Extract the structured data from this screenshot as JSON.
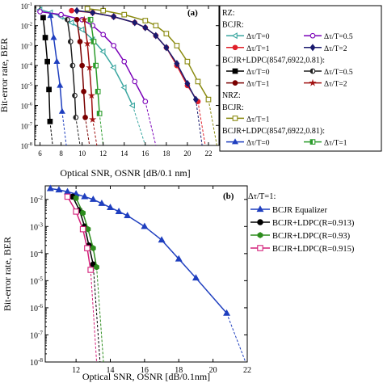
{
  "chart_data": [
    {
      "type": "line",
      "panel": "(a)",
      "xlabel": "Optical SNR, OSNR [dB/0.1 nm]",
      "ylabel": "Bit-error rate, BER",
      "xlim": [
        5.5,
        23
      ],
      "ylog": true,
      "ylim_exp": [
        -8,
        -1
      ],
      "xticks": [
        "6",
        "8",
        "10",
        "12",
        "14",
        "16",
        "18",
        "20",
        "22"
      ],
      "yticks": [
        "10-1",
        "10-2",
        "10-3",
        "10-4",
        "10-5",
        "10-6",
        "10-7",
        "10-8"
      ],
      "legend_placement": "right",
      "legend": [
        {
          "kind": "header",
          "text": "RZ:"
        },
        {
          "kind": "header",
          "text": "BCJR:"
        },
        {
          "kind": "pair",
          "left": "Δτ/T=0",
          "right": "Δτ/T=0.5"
        },
        {
          "kind": "pair",
          "left": "Δτ/T=1",
          "right": "Δτ/T=2"
        },
        {
          "kind": "header",
          "text": "BCJR+LDPC(8547,6922,0.81):"
        },
        {
          "kind": "pair",
          "left": "Δτ/T=0",
          "right": "Δτ/T=0.5"
        },
        {
          "kind": "pair",
          "left": "Δτ/T=1",
          "right": "Δτ/T=2"
        },
        {
          "kind": "header",
          "text": "NRZ:"
        },
        {
          "kind": "header",
          "text": "BCJR:"
        },
        {
          "kind": "single",
          "text": "Δτ/T=1"
        },
        {
          "kind": "header",
          "text": "BCJR+LDPC(8547,6922,0.81):"
        },
        {
          "kind": "pair",
          "left": "Δτ/T=0",
          "right": "Δτ/T=1"
        }
      ],
      "series": [
        {
          "color": "#3aa6a0",
          "marker": "tri-left",
          "fill": "open",
          "x": [
            6.0,
            7.0,
            8.0,
            9.0,
            10.0,
            11.0,
            12.0,
            13.0,
            14.0,
            14.8
          ],
          "y_exp": [
            -1.2,
            -1.35,
            -1.55,
            -1.85,
            -2.2,
            -2.7,
            -3.3,
            -4.1,
            -5.1,
            -6.0
          ],
          "extension": {
            "x": [
              14.8,
              16.0
            ],
            "y_exp": [
              -6.0,
              -8.0
            ]
          }
        },
        {
          "color": "#7a00b8",
          "marker": "circle",
          "fill": "open",
          "x": [
            6.0,
            8.0,
            10.0,
            11.0,
            12.0,
            13.0,
            14.0,
            15.0,
            16.0
          ],
          "y_exp": [
            -1.3,
            -1.45,
            -1.7,
            -2.0,
            -2.45,
            -3.0,
            -3.8,
            -4.8,
            -5.8
          ],
          "extension": {
            "x": [
              16.0,
              17.0
            ],
            "y_exp": [
              -5.8,
              -8.0
            ]
          }
        },
        {
          "color": "#e0202a",
          "marker": "circle",
          "fill": "filled",
          "x": [
            9.0,
            11.0,
            13.0,
            15.0,
            16.0,
            17.0,
            18.0,
            19.0,
            20.0,
            21.0
          ],
          "y_exp": [
            -1.25,
            -1.35,
            -1.55,
            -1.85,
            -2.1,
            -2.5,
            -3.1,
            -4.0,
            -5.0,
            -5.8
          ],
          "extension": {
            "x": [
              21.0,
              21.7
            ],
            "y_exp": [
              -5.8,
              -8.0
            ]
          }
        },
        {
          "color": "#1a1a6e",
          "marker": "diamond",
          "fill": "filled",
          "x": [
            9.5,
            11.0,
            13.0,
            15.0,
            16.0,
            17.0,
            18.0,
            19.0,
            20.0,
            20.8
          ],
          "y_exp": [
            -1.25,
            -1.35,
            -1.55,
            -1.85,
            -2.1,
            -2.5,
            -3.1,
            -3.9,
            -4.9,
            -5.7
          ],
          "extension": {
            "x": [
              20.8,
              21.4
            ],
            "y_exp": [
              -5.7,
              -8.0
            ]
          }
        },
        {
          "color": "#000000",
          "marker": "square",
          "fill": "filled",
          "x": [
            6.3,
            6.5,
            6.7,
            6.85,
            6.95
          ],
          "y_exp": [
            -1.6,
            -2.6,
            -3.8,
            -5.2,
            -6.8
          ],
          "extension": {
            "x": [
              6.95,
              7.2
            ],
            "y_exp": [
              -6.8,
              -8.0
            ]
          }
        },
        {
          "color": "#222222",
          "marker": "circle-half",
          "fill": "half",
          "x": [
            8.6,
            8.9,
            9.1,
            9.3,
            9.4
          ],
          "y_exp": [
            -1.7,
            -2.8,
            -4.0,
            -5.5,
            -6.6
          ],
          "extension": {
            "x": [
              9.4,
              9.8
            ],
            "y_exp": [
              -6.6,
              -8.0
            ]
          }
        },
        {
          "color": "#7a0000",
          "marker": "circle",
          "fill": "filled",
          "x": [
            9.5,
            9.8,
            10.0,
            10.15,
            10.3
          ],
          "y_exp": [
            -1.7,
            -2.8,
            -4.0,
            -5.3,
            -6.6
          ],
          "extension": {
            "x": [
              10.3,
              10.7
            ],
            "y_exp": [
              -6.6,
              -8.0
            ]
          }
        },
        {
          "color": "#a01010",
          "marker": "star",
          "fill": "filled",
          "x": [
            10.2,
            10.5,
            10.7,
            10.9,
            11.0
          ],
          "y_exp": [
            -1.7,
            -2.9,
            -4.1,
            -5.5,
            -6.7
          ],
          "extension": {
            "x": [
              11.0,
              11.4
            ],
            "y_exp": [
              -6.7,
              -8.0
            ]
          }
        },
        {
          "color": "#8a8a10",
          "marker": "square",
          "fill": "open",
          "x": [
            10.5,
            12.0,
            14.0,
            16.0,
            17.0,
            18.0,
            19.0,
            20.0,
            21.0,
            22.0
          ],
          "y_exp": [
            -1.15,
            -1.25,
            -1.45,
            -1.75,
            -2.0,
            -2.4,
            -3.0,
            -3.8,
            -4.8,
            -5.7
          ],
          "extension": {
            "x": [
              22.0,
              22.8
            ],
            "y_exp": [
              -5.7,
              -8.0
            ]
          }
        },
        {
          "color": "#1f3fbf",
          "marker": "triangle",
          "fill": "filled",
          "x": [
            7.0,
            7.3,
            7.6,
            7.9,
            8.1
          ],
          "y_exp": [
            -1.5,
            -2.6,
            -3.8,
            -5.0,
            -6.3
          ],
          "extension": {
            "x": [
              8.1,
              8.5
            ],
            "y_exp": [
              -6.3,
              -8.0
            ]
          }
        },
        {
          "color": "#2c9c2c",
          "marker": "square-half",
          "fill": "half",
          "x": [
            10.8,
            11.1,
            11.3,
            11.5,
            11.65
          ],
          "y_exp": [
            -1.7,
            -2.8,
            -4.0,
            -5.3,
            -6.4
          ],
          "extension": {
            "x": [
              11.65,
              12.0
            ],
            "y_exp": [
              -6.4,
              -8.0
            ]
          }
        }
      ]
    },
    {
      "type": "line",
      "panel": "(b)",
      "xlabel": "Optical SNR, OSNR [dB/0.1nm]",
      "ylabel": "Bit-error rate, BER",
      "xlim": [
        10.2,
        22
      ],
      "ylog": true,
      "ylim_exp": [
        -8,
        -1.5
      ],
      "xticks": [
        "12",
        "14",
        "16",
        "18",
        "20",
        "22"
      ],
      "yticks": [
        "10-2",
        "10-3",
        "10-4",
        "10-5",
        "10-6",
        "10-7",
        "10-8"
      ],
      "legend_placement": "right",
      "legend_title": "Δτ/T=1:",
      "legend": [
        "BCJR Equalizer",
        "BCJR+LDPC(R=0.913)",
        "BCJR+LDPC(R=0.93)",
        "BCJR+LDPC(R=0.915)"
      ],
      "series": [
        {
          "name": "BCJR Equalizer",
          "color": "#1f3fbf",
          "marker": "triangle",
          "fill": "filled",
          "x": [
            10.5,
            11.0,
            11.5,
            12.0,
            12.5,
            13.0,
            13.5,
            14.0,
            14.5,
            15.0,
            16.0,
            17.0,
            18.0,
            19.0,
            20.8
          ],
          "y_exp": [
            -1.6,
            -1.65,
            -1.72,
            -1.8,
            -1.9,
            -2.0,
            -2.15,
            -2.3,
            -2.45,
            -2.6,
            -3.0,
            -3.5,
            -4.2,
            -4.9,
            -6.2
          ],
          "extension": {
            "x": [
              20.8,
              21.9
            ],
            "y_exp": [
              -6.2,
              -8.0
            ]
          }
        },
        {
          "name": "BCJR+LDPC(R=0.913)",
          "color": "#000000",
          "marker": "circle",
          "fill": "filled",
          "x": [
            11.8,
            12.2,
            12.5,
            12.75,
            13.0
          ],
          "y_exp": [
            -1.9,
            -2.4,
            -3.0,
            -3.7,
            -4.4
          ],
          "extension": {
            "x": [
              13.0,
              13.4
            ],
            "y_exp": [
              -4.4,
              -8.0
            ]
          }
        },
        {
          "name": "BCJR+LDPC(R=0.93)",
          "color": "#2c8c1c",
          "marker": "hexagon",
          "fill": "filled",
          "x": [
            12.0,
            12.4,
            12.7,
            13.0,
            13.2
          ],
          "y_exp": [
            -1.95,
            -2.5,
            -3.1,
            -3.8,
            -4.5
          ],
          "extension": {
            "x": [
              13.2,
              13.6
            ],
            "y_exp": [
              -4.5,
              -8.0
            ]
          }
        },
        {
          "name": "BCJR+LDPC(R=0.915)",
          "color": "#d4207a",
          "marker": "square",
          "fill": "open",
          "x": [
            11.5,
            12.0,
            12.4,
            12.65,
            12.85
          ],
          "y_exp": [
            -1.9,
            -2.45,
            -3.1,
            -3.8,
            -4.6
          ],
          "extension": {
            "x": [
              12.85,
              13.2
            ],
            "y_exp": [
              -4.6,
              -8.0
            ]
          }
        }
      ]
    }
  ]
}
